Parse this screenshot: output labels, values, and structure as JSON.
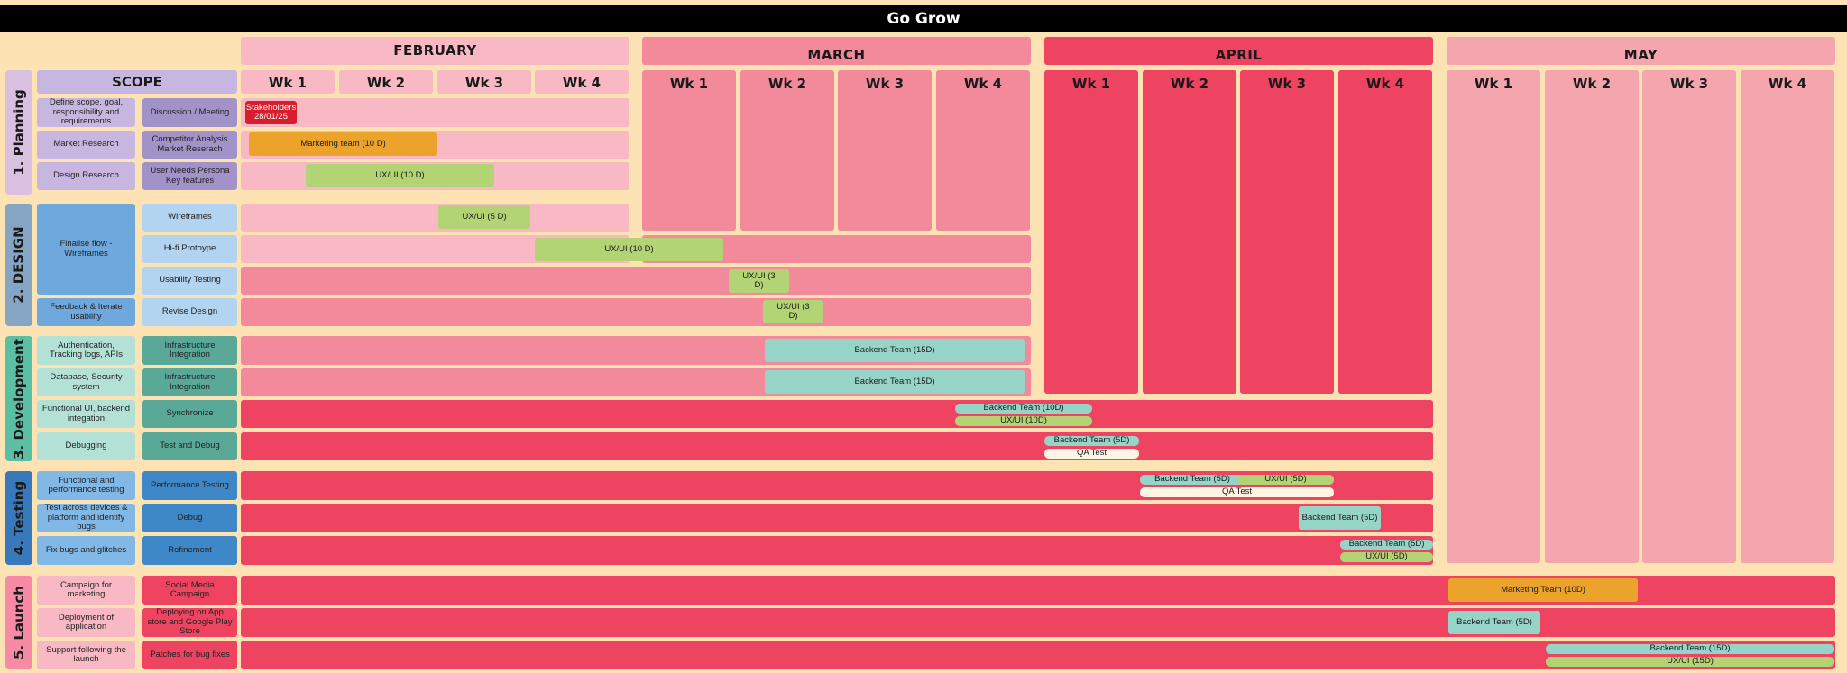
{
  "title": "Go Grow",
  "months": [
    "FEBRUARY",
    "MARCH",
    "APRIL",
    "MAY"
  ],
  "weeks": [
    "Wk 1",
    "Wk 2",
    "Wk 3",
    "Wk 4"
  ],
  "scope_label": "SCOPE",
  "phases": [
    "1. Planning",
    "2. DESIGN",
    "3. Development",
    "4. Testing",
    "5. Launch"
  ],
  "rows": [
    {
      "scope": "Define scope, goal, responsibility and requirements",
      "activity": "Discussion / Meeting"
    },
    {
      "scope": "Market Research",
      "activity": "Competitor Analysis Market Reserach"
    },
    {
      "scope": "Design Research",
      "activity": "User Needs Persona Key features"
    },
    {
      "scope": "Finalise flow - Wireframes",
      "activity": "Wireframes"
    },
    {
      "activity": "Hi-fi Protoype"
    },
    {
      "activity": "Usability Testing"
    },
    {
      "scope": "Feedback & Iterate usability",
      "activity": "Revise Design"
    },
    {
      "scope": "Authentication, Tracking logs, APIs",
      "activity": "Infrastructure Integration"
    },
    {
      "scope": "Database, Security system",
      "activity": "Infrastructure Integration"
    },
    {
      "scope": "Functional UI, backend integation",
      "activity": "Synchronize"
    },
    {
      "scope": "Debugging",
      "activity": "Test and Debug"
    },
    {
      "scope": "Functional and performance testing",
      "activity": "Performance Testing"
    },
    {
      "scope": "Test across devices & platform and identify bugs",
      "activity": "Debug"
    },
    {
      "scope": "Fix bugs and glitches",
      "activity": "Refinement"
    },
    {
      "scope": "Campaign for marketing",
      "activity": "Social Media Campaign"
    },
    {
      "scope": "Deployment of application",
      "activity": "Deploying on App store and Google Play Store"
    },
    {
      "scope": "Support following the launch",
      "activity": "Patches for bug fixes"
    }
  ],
  "tasks": [
    "Stakeholders 28/01/25",
    "Marketing team  (10 D)",
    "UX/UI (10 D)",
    "UX/UI (5 D)",
    "UX/UI (10 D)",
    "UX/UI (3 D)",
    "UX/UI (3 D)",
    "Backend Team (15D)",
    "Backend Team (15D)",
    "Backend Team (10D)",
    "UX/UI (10D)",
    "Backend Team (5D)",
    "QA Test",
    "Backend Team (5D)",
    "UX/UI (5D)",
    "QA Test",
    "Backend Team (5D)",
    "Backend Team (5D)",
    "UX/UI (5D)",
    "Marketing Team (10D)",
    "Backend Team (5D)",
    "Backend Team (15D)",
    "UX/UI (15D)"
  ],
  "colors": {
    "background": "#fde2b3",
    "february": "#f8b8c4",
    "march": "#f28a9c",
    "april": "#ef4461",
    "may": "#f5a5ad",
    "task_green": "#b2d474",
    "task_teal": "#95d4c6",
    "task_orange": "#eba32b",
    "task_red": "#d81e2c",
    "qa": "#fdf6e4"
  }
}
